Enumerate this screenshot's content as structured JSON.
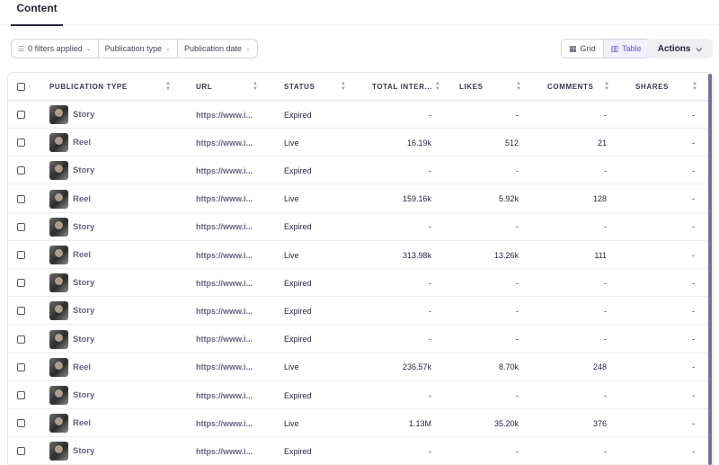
{
  "tabs": [
    {
      "label": "Content"
    }
  ],
  "filters": {
    "applied": "0 filters applied",
    "publication_type": "Publication type",
    "publication_date": "Publication date"
  },
  "view": {
    "grid": "Grid",
    "table": "Table",
    "active": "Table"
  },
  "actions_label": "Actions",
  "columns": [
    "PUBLICATION TYPE",
    "URL",
    "STATUS",
    "TOTAL INTER...",
    "LIKES",
    "COMMENTS",
    "SHARES"
  ],
  "rows": [
    {
      "type": "Story",
      "url": "https://www.i...",
      "status": "Expired",
      "total": "-",
      "likes": "-",
      "comments": "-",
      "shares": "-"
    },
    {
      "type": "Reel",
      "url": "https://www.i...",
      "status": "Live",
      "total": "16.19k",
      "likes": "512",
      "comments": "21",
      "shares": "-"
    },
    {
      "type": "Story",
      "url": "https://www.i...",
      "status": "Expired",
      "total": "-",
      "likes": "-",
      "comments": "-",
      "shares": "-"
    },
    {
      "type": "Reel",
      "url": "https://www.i...",
      "status": "Live",
      "total": "159.16k",
      "likes": "5.92k",
      "comments": "128",
      "shares": "-"
    },
    {
      "type": "Story",
      "url": "https://www.i...",
      "status": "Expired",
      "total": "-",
      "likes": "-",
      "comments": "-",
      "shares": "-"
    },
    {
      "type": "Reel",
      "url": "https://www.i...",
      "status": "Live",
      "total": "313.98k",
      "likes": "13.26k",
      "comments": "111",
      "shares": "-"
    },
    {
      "type": "Story",
      "url": "https://www.i...",
      "status": "Expired",
      "total": "-",
      "likes": "-",
      "comments": "-",
      "shares": "-"
    },
    {
      "type": "Story",
      "url": "https://www.i...",
      "status": "Expired",
      "total": "-",
      "likes": "-",
      "comments": "-",
      "shares": "-"
    },
    {
      "type": "Story",
      "url": "https://www.i...",
      "status": "Expired",
      "total": "-",
      "likes": "-",
      "comments": "-",
      "shares": "-"
    },
    {
      "type": "Reel",
      "url": "https://www.i...",
      "status": "Live",
      "total": "236.57k",
      "likes": "8.70k",
      "comments": "248",
      "shares": "-"
    },
    {
      "type": "Story",
      "url": "https://www.i...",
      "status": "Expired",
      "total": "-",
      "likes": "-",
      "comments": "-",
      "shares": "-"
    },
    {
      "type": "Reel",
      "url": "https://www.i...",
      "status": "Live",
      "total": "1.13M",
      "likes": "35.20k",
      "comments": "376",
      "shares": "-"
    },
    {
      "type": "Story",
      "url": "https://www.i...",
      "status": "Expired",
      "total": "-",
      "likes": "-",
      "comments": "-",
      "shares": "-"
    }
  ]
}
